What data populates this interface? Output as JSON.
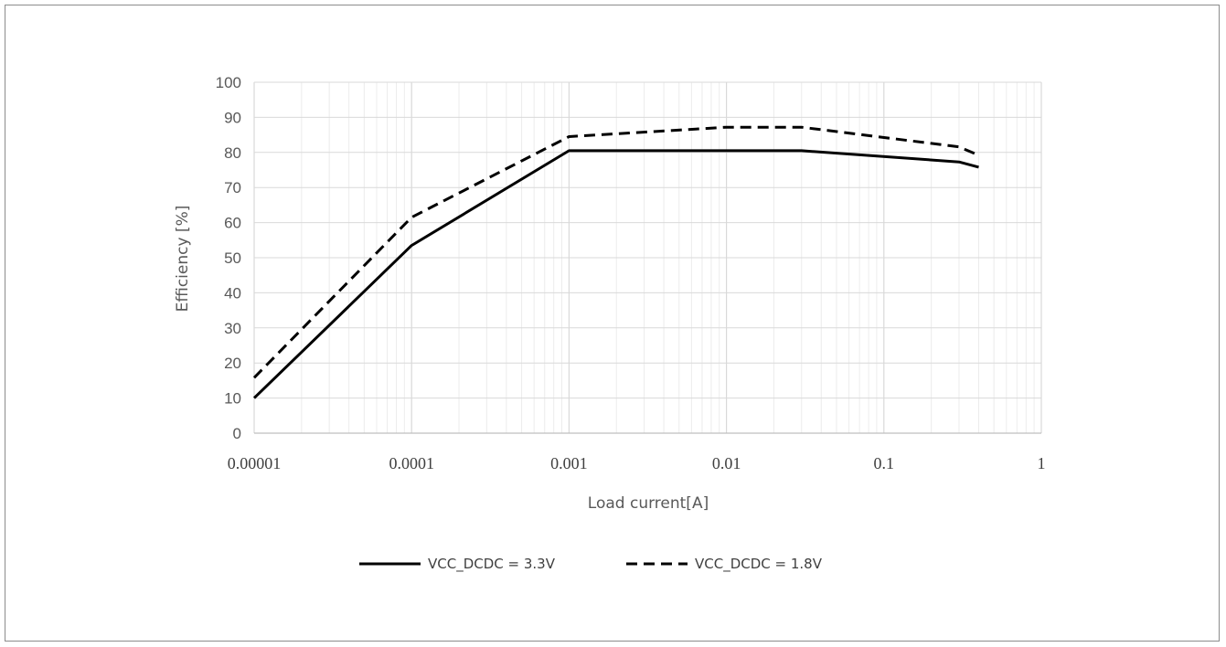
{
  "chart_data": {
    "type": "line",
    "title": "",
    "xlabel": "Load current[A]",
    "ylabel": "Efficiency [%]",
    "x_scale": "log",
    "xlim": [
      1e-05,
      1
    ],
    "ylim": [
      0,
      100
    ],
    "x_ticks": [
      "0.00001",
      "0.0001",
      "0.001",
      "0.01",
      "0.1",
      "1"
    ],
    "y_ticks": [
      "0",
      "10",
      "20",
      "30",
      "40",
      "50",
      "60",
      "70",
      "80",
      "90",
      "100"
    ],
    "grid": true,
    "legend_position": "bottom",
    "series": [
      {
        "name": "VCC_DCDC = 3.3V",
        "line_style": "solid",
        "color": "#000000",
        "x": [
          1e-05,
          0.0001,
          0.001,
          0.01,
          0.03,
          0.3,
          0.4
        ],
        "y": [
          10,
          53.5,
          80.5,
          80.5,
          80.5,
          77.3,
          75.8
        ]
      },
      {
        "name": "VCC_DCDC = 1.8V",
        "line_style": "dashed",
        "color": "#000000",
        "x": [
          1e-05,
          0.0001,
          0.001,
          0.01,
          0.03,
          0.3,
          0.4
        ],
        "y": [
          15.8,
          61.5,
          84.5,
          87.2,
          87.2,
          81.6,
          79.2
        ]
      }
    ]
  }
}
